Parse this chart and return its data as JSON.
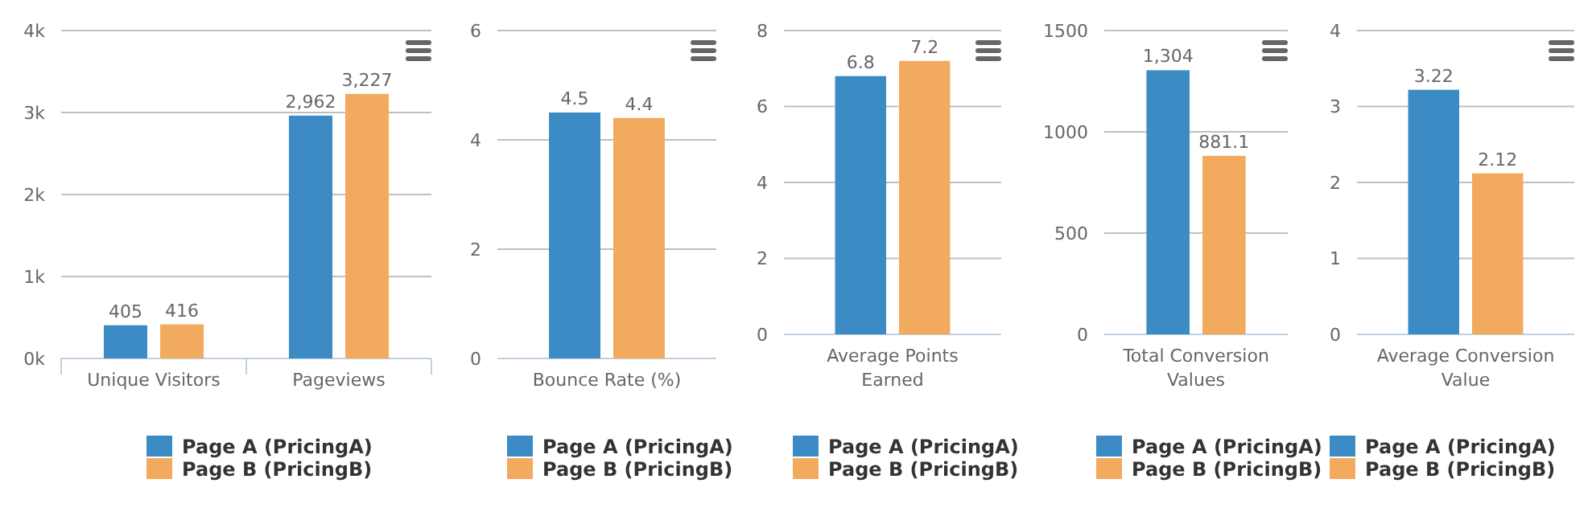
{
  "chart_data": [
    {
      "type": "bar",
      "categories": [
        "Unique Visitors",
        "Pageviews"
      ],
      "series": [
        {
          "name": "Page A (PricingA)",
          "color": "#3d8bc4",
          "values": [
            405,
            2962
          ],
          "value_labels": [
            "405",
            "2,962"
          ]
        },
        {
          "name": "Page B (PricingB)",
          "color": "#f2aa5e",
          "values": [
            416,
            3227
          ],
          "value_labels": [
            "416",
            "3,227"
          ]
        }
      ],
      "ylim": [
        0,
        4000
      ],
      "yticks": [
        {
          "value": 0,
          "label": "0k"
        },
        {
          "value": 1000,
          "label": "1k"
        },
        {
          "value": 2000,
          "label": "2k"
        },
        {
          "value": 3000,
          "label": "3k"
        },
        {
          "value": 4000,
          "label": "4k"
        }
      ],
      "grid": "y",
      "legend": "bottom"
    },
    {
      "type": "bar",
      "categories": [
        "Bounce Rate (%)"
      ],
      "series": [
        {
          "name": "Page A (PricingA)",
          "color": "#3d8bc4",
          "values": [
            4.5
          ]
        },
        {
          "name": "Page B (PricingB)",
          "color": "#f2aa5e",
          "values": [
            4.4
          ]
        }
      ],
      "ylim": [
        0,
        6
      ],
      "yticks": [
        0,
        2,
        4,
        6
      ],
      "grid": "y",
      "legend": "bottom",
      "data_labels": true
    },
    {
      "type": "bar",
      "categories": [
        "Average Points Earned"
      ],
      "series": [
        {
          "name": "Page A (PricingA)",
          "color": "#3d8bc4",
          "values": [
            6.8
          ]
        },
        {
          "name": "Page B (PricingB)",
          "color": "#f2aa5e",
          "values": [
            7.2
          ]
        }
      ],
      "ylim": [
        0,
        8
      ],
      "yticks": [
        0,
        2,
        4,
        6,
        8
      ],
      "grid": "y",
      "legend": "bottom",
      "data_labels": true
    },
    {
      "type": "bar",
      "categories": [
        "Total Conversion Values"
      ],
      "series": [
        {
          "name": "Page A (PricingA)",
          "color": "#3d8bc4",
          "values": [
            1304
          ],
          "value_labels": [
            "1,304"
          ]
        },
        {
          "name": "Page B (PricingB)",
          "color": "#f2aa5e",
          "values": [
            881.1
          ],
          "value_labels": [
            "881.1"
          ]
        }
      ],
      "ylim": [
        0,
        1500
      ],
      "yticks": [
        0,
        500,
        1000,
        1500
      ],
      "grid": "y",
      "legend": "bottom"
    },
    {
      "type": "bar",
      "categories": [
        "Average Conversion Value"
      ],
      "series": [
        {
          "name": "Page A (PricingA)",
          "color": "#3d8bc4",
          "values": [
            3.22
          ]
        },
        {
          "name": "Page B (PricingB)",
          "color": "#f2aa5e",
          "values": [
            2.12
          ]
        }
      ],
      "ylim": [
        0,
        4
      ],
      "yticks": [
        0,
        1,
        2,
        3,
        4
      ],
      "grid": "y",
      "legend": "bottom",
      "data_labels": true
    }
  ]
}
